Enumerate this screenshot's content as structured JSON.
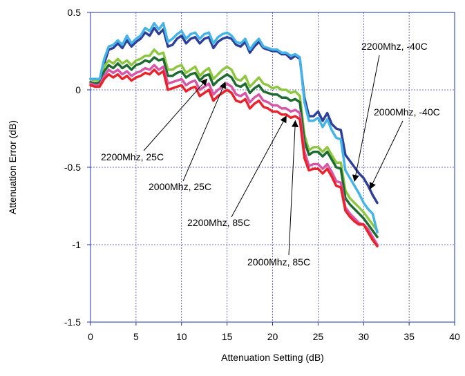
{
  "chart_data": {
    "type": "line",
    "title": "",
    "xlabel": "Attenuation Setting (dB)",
    "ylabel": "Attenuation Error (dB)",
    "xlim": [
      0,
      40
    ],
    "ylim": [
      -1.5,
      0.5
    ],
    "xticks": [
      "0",
      "5",
      "10",
      "15",
      "20",
      "25",
      "30",
      "35",
      "40"
    ],
    "yticks": [
      "0.5",
      "0",
      "-0.5",
      "-1",
      "-1.5"
    ],
    "grid": true,
    "x": [
      0,
      0.5,
      1,
      1.5,
      2,
      2.5,
      3,
      3.5,
      4,
      4.5,
      5,
      5.5,
      6,
      6.5,
      7,
      7.5,
      8,
      8.5,
      9,
      9.5,
      10,
      10.5,
      11,
      11.5,
      12,
      12.5,
      13,
      13.5,
      14,
      14.5,
      15,
      15.5,
      16,
      16.5,
      17,
      17.5,
      18,
      18.5,
      19,
      19.5,
      20,
      20.5,
      21,
      21.5,
      22,
      22.5,
      23,
      23.5,
      24,
      24.5,
      25,
      25.5,
      26,
      26.5,
      27,
      27.5,
      28,
      28.5,
      29,
      29.5,
      30,
      30.5,
      31,
      31.5
    ],
    "series": [
      {
        "label": "2200Mhz, -40C",
        "color": "#2e3f9a",
        "values": [
          0.07,
          0.07,
          0.07,
          0.17,
          0.26,
          0.27,
          0.3,
          0.27,
          0.32,
          0.28,
          0.31,
          0.33,
          0.37,
          0.35,
          0.4,
          0.36,
          0.39,
          0.28,
          0.29,
          0.33,
          0.35,
          0.3,
          0.33,
          0.34,
          0.3,
          0.33,
          0.34,
          0.27,
          0.31,
          0.33,
          0.34,
          0.33,
          0.29,
          0.28,
          0.31,
          0.24,
          0.28,
          0.31,
          0.27,
          0.26,
          0.25,
          0.25,
          0.23,
          0.23,
          0.2,
          0.22,
          0.2,
          -0.05,
          -0.17,
          -0.17,
          -0.14,
          -0.2,
          -0.15,
          -0.22,
          -0.25,
          -0.26,
          -0.42,
          -0.46,
          -0.5,
          -0.54,
          -0.57,
          -0.62,
          -0.68,
          -0.73
        ]
      },
      {
        "label": "2200Mhz, 25C",
        "color": "#8ec641",
        "values": [
          0.07,
          0.06,
          0.07,
          0.15,
          0.19,
          0.17,
          0.2,
          0.17,
          0.19,
          0.16,
          0.19,
          0.2,
          0.22,
          0.22,
          0.26,
          0.23,
          0.24,
          0.13,
          0.13,
          0.15,
          0.16,
          0.11,
          0.13,
          0.15,
          0.09,
          0.12,
          0.14,
          0.07,
          0.1,
          0.13,
          0.15,
          0.13,
          0.07,
          0.06,
          0.09,
          0.02,
          0.05,
          0.08,
          0.04,
          0.03,
          0.01,
          0.02,
          0.0,
          0.0,
          -0.02,
          -0.01,
          -0.04,
          -0.29,
          -0.39,
          -0.37,
          -0.37,
          -0.4,
          -0.37,
          -0.42,
          -0.47,
          -0.47,
          -0.65,
          -0.7,
          -0.73,
          -0.76,
          -0.79,
          -0.83,
          -0.87,
          -0.91
        ]
      },
      {
        "label": "2000Mhz, 25C",
        "color": "#1e6b32",
        "values": [
          0.05,
          0.04,
          0.05,
          0.12,
          0.16,
          0.14,
          0.17,
          0.14,
          0.16,
          0.13,
          0.16,
          0.17,
          0.19,
          0.18,
          0.21,
          0.19,
          0.2,
          0.09,
          0.09,
          0.11,
          0.12,
          0.08,
          0.1,
          0.11,
          0.06,
          0.09,
          0.1,
          0.03,
          0.06,
          0.08,
          0.1,
          0.08,
          0.03,
          0.02,
          0.04,
          -0.02,
          0.01,
          0.03,
          -0.01,
          -0.02,
          -0.03,
          -0.03,
          -0.05,
          -0.05,
          -0.07,
          -0.06,
          -0.08,
          -0.33,
          -0.42,
          -0.4,
          -0.4,
          -0.43,
          -0.4,
          -0.45,
          -0.5,
          -0.51,
          -0.7,
          -0.74,
          -0.77,
          -0.8,
          -0.83,
          -0.87,
          -0.91,
          -0.95
        ]
      },
      {
        "label": "2200Mhz, 85C",
        "color": "#d756a8",
        "values": [
          0.04,
          0.03,
          0.03,
          0.09,
          0.13,
          0.11,
          0.13,
          0.1,
          0.12,
          0.09,
          0.11,
          0.12,
          0.14,
          0.13,
          0.16,
          0.13,
          0.15,
          0.04,
          0.05,
          0.06,
          0.07,
          0.03,
          0.05,
          0.06,
          0.0,
          0.02,
          0.04,
          -0.03,
          0.0,
          0.02,
          0.04,
          0.02,
          -0.03,
          -0.04,
          -0.02,
          -0.08,
          -0.05,
          -0.03,
          -0.07,
          -0.08,
          -0.1,
          -0.1,
          -0.12,
          -0.12,
          -0.14,
          -0.13,
          -0.15,
          -0.4,
          -0.49,
          -0.48,
          -0.48,
          -0.51,
          -0.48,
          -0.53,
          -0.59,
          -0.6,
          -0.76,
          -0.8,
          -0.83,
          -0.86,
          -0.87,
          -0.9,
          -0.95,
          -1.0
        ]
      },
      {
        "label": "2000Mhz, 85C",
        "color": "#e8232b",
        "values": [
          0.03,
          0.02,
          0.02,
          0.07,
          0.1,
          0.08,
          0.1,
          0.07,
          0.09,
          0.06,
          0.08,
          0.09,
          0.11,
          0.1,
          0.13,
          0.1,
          0.12,
          0.0,
          0.01,
          0.02,
          0.03,
          -0.01,
          0.01,
          0.02,
          -0.04,
          -0.02,
          0.0,
          -0.07,
          -0.04,
          -0.02,
          0.0,
          -0.02,
          -0.07,
          -0.08,
          -0.06,
          -0.12,
          -0.09,
          -0.07,
          -0.11,
          -0.12,
          -0.14,
          -0.14,
          -0.16,
          -0.16,
          -0.18,
          -0.17,
          -0.19,
          -0.44,
          -0.52,
          -0.51,
          -0.51,
          -0.54,
          -0.51,
          -0.56,
          -0.62,
          -0.63,
          -0.78,
          -0.82,
          -0.85,
          -0.87,
          -0.87,
          -0.92,
          -0.97,
          -1.01
        ]
      },
      {
        "label": "2000Mhz, -40C",
        "color": "#45b3e6",
        "values": [
          0.07,
          0.07,
          0.07,
          0.2,
          0.28,
          0.29,
          0.32,
          0.29,
          0.35,
          0.3,
          0.33,
          0.35,
          0.4,
          0.38,
          0.43,
          0.39,
          0.43,
          0.31,
          0.33,
          0.36,
          0.38,
          0.33,
          0.36,
          0.37,
          0.33,
          0.36,
          0.37,
          0.3,
          0.34,
          0.36,
          0.37,
          0.35,
          0.31,
          0.3,
          0.33,
          0.26,
          0.3,
          0.33,
          0.28,
          0.27,
          0.26,
          0.26,
          0.24,
          0.24,
          0.22,
          0.23,
          0.21,
          -0.08,
          -0.2,
          -0.2,
          -0.18,
          -0.24,
          -0.19,
          -0.26,
          -0.31,
          -0.32,
          -0.52,
          -0.57,
          -0.62,
          -0.67,
          -0.73,
          -0.77,
          -0.8,
          -0.92
        ]
      }
    ],
    "annotations": [
      {
        "text": "2200Mhz, -40C",
        "point": [
          29,
          -0.59
        ]
      },
      {
        "text": "2000Mhz, -40C",
        "point": [
          30.7,
          -0.64
        ]
      },
      {
        "text": "2200Mhz, 25C",
        "point": [
          12.8,
          0.07
        ]
      },
      {
        "text": "2000Mhz, 25C",
        "point": [
          14.8,
          0.05
        ]
      },
      {
        "text": "2200Mhz, 85C",
        "point": [
          21.5,
          -0.17
        ]
      },
      {
        "text": "2000Mhz, 85C",
        "point": [
          22.5,
          -0.2
        ]
      }
    ]
  }
}
